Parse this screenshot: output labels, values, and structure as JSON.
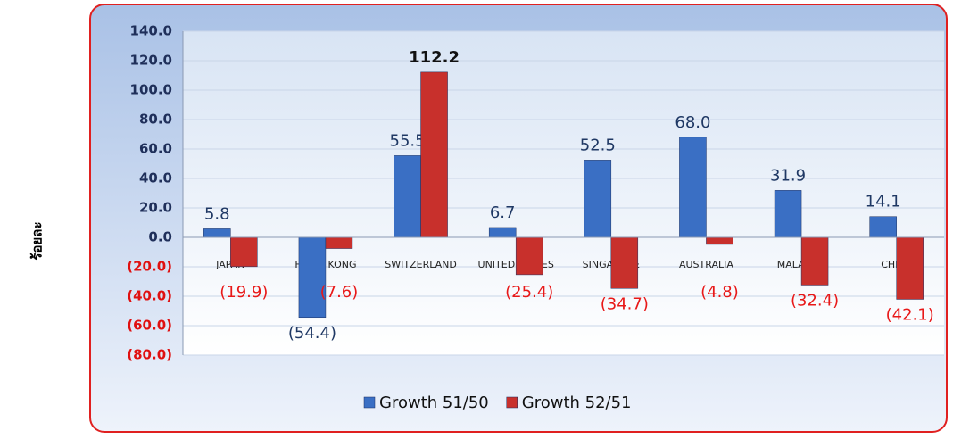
{
  "chart_data": {
    "type": "bar",
    "y_label": "ร้อยละ",
    "categories": [
      "JAPAN",
      "HONG KONG",
      "SWITZERLAND",
      "UNITED STATES",
      "SINGAPORE",
      "AUSTRALIA",
      "MALAYSIA",
      "CHINA"
    ],
    "series": [
      {
        "name": "Growth 51/50",
        "color": "#3a6fc4",
        "values": [
          5.8,
          -54.4,
          55.5,
          6.7,
          52.5,
          68.0,
          31.9,
          14.1
        ],
        "value_labels": [
          "5.8",
          "(54.4)",
          "55.5",
          "6.7",
          "52.5",
          "68.0",
          "31.9",
          "14.1"
        ]
      },
      {
        "name": "Growth 52/51",
        "color": "#c8302c",
        "values": [
          -19.9,
          -7.6,
          112.2,
          -25.4,
          -34.7,
          -4.8,
          -32.4,
          -42.1
        ],
        "value_labels": [
          "(19.9)",
          "(7.6)",
          "112.2",
          "(25.4)",
          "(34.7)",
          "(4.8)",
          "(32.4)",
          "(42.1)"
        ]
      }
    ],
    "ylim": [
      -80,
      140
    ],
    "yticks": [
      {
        "value": -80,
        "label": "(80.0)"
      },
      {
        "value": -60,
        "label": "(60.0)"
      },
      {
        "value": -40,
        "label": "(40.0)"
      },
      {
        "value": -20,
        "label": "(20.0)"
      },
      {
        "value": 0,
        "label": "0.0"
      },
      {
        "value": 20,
        "label": "20.0"
      },
      {
        "value": 40,
        "label": "40.0"
      },
      {
        "value": 60,
        "label": "60.0"
      },
      {
        "value": 80,
        "label": "80.0"
      },
      {
        "value": 100,
        "label": "100.0"
      },
      {
        "value": 120,
        "label": "120.0"
      },
      {
        "value": 140,
        "label": "140.0"
      }
    ],
    "grid": true,
    "legend": "bottom"
  }
}
